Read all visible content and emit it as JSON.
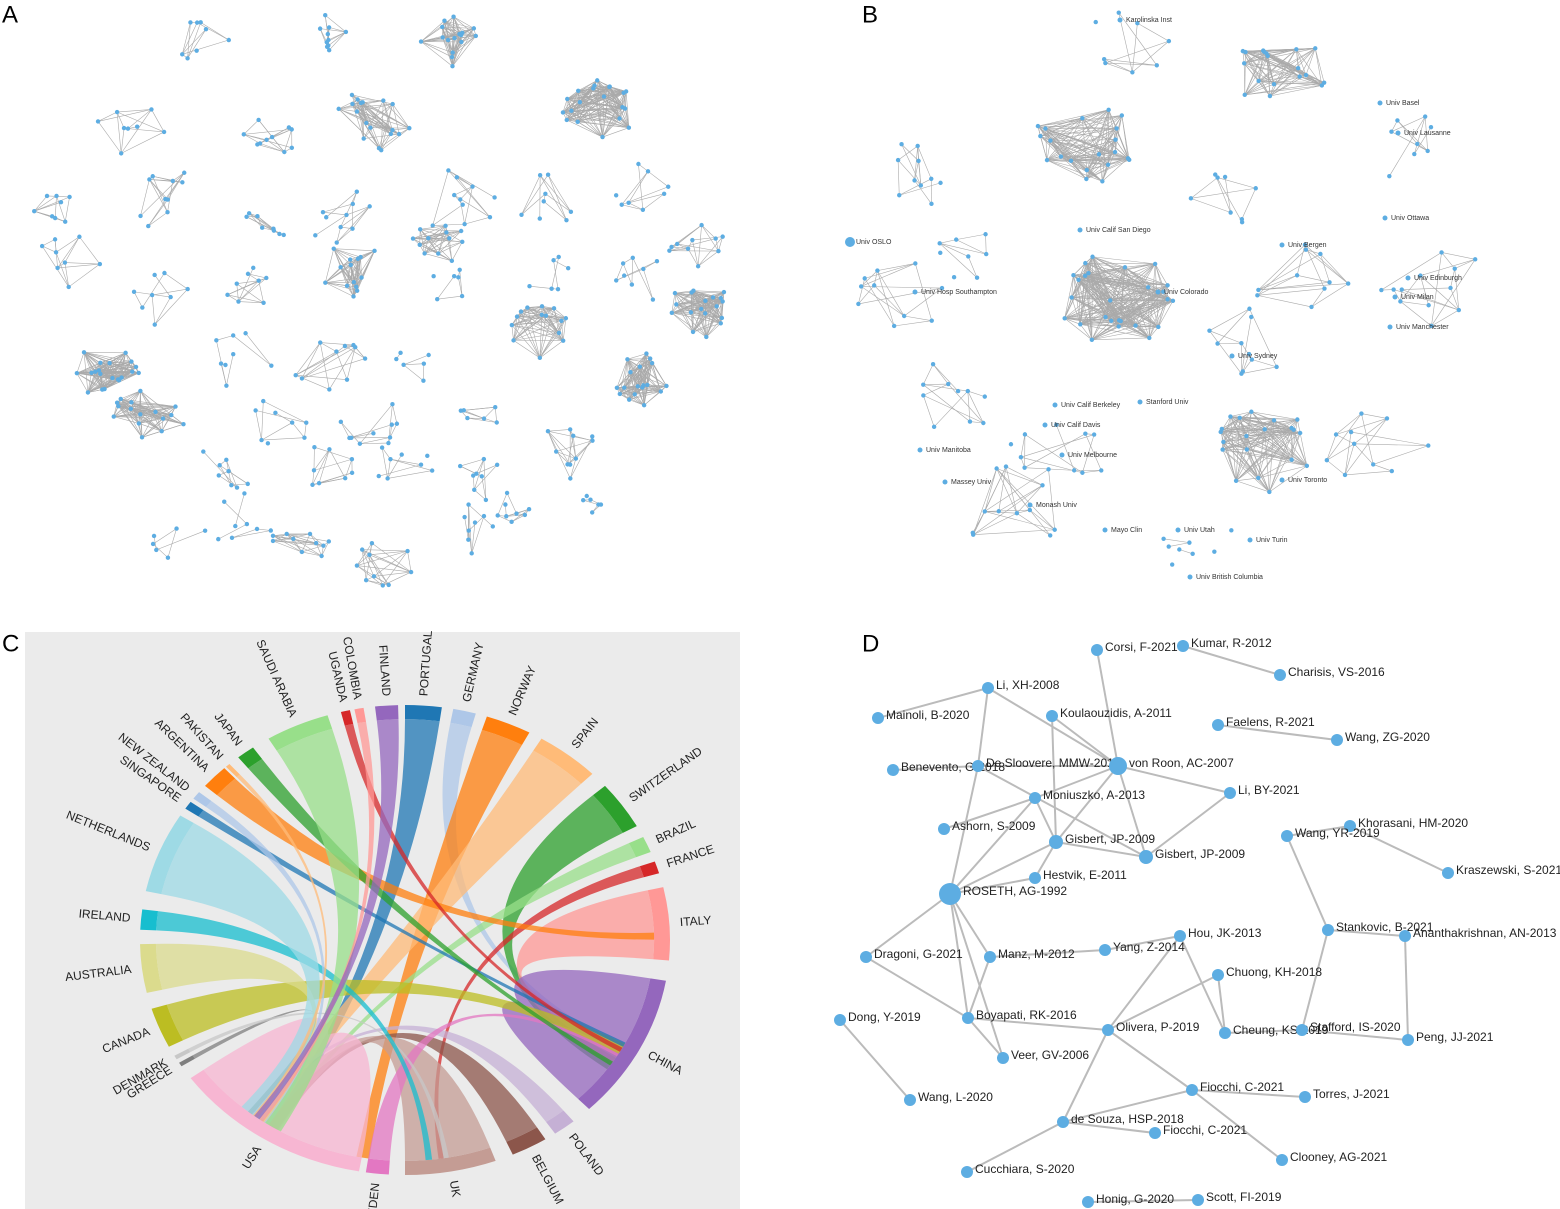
{
  "panels": [
    {
      "label": "A"
    },
    {
      "label": "B",
      "nodes": [
        "Univ OSLO",
        "Univ Colorado",
        "Stanford Univ",
        "Mayo Clin",
        "Univ Utah",
        "Univ Toronto",
        "Univ Calif San Diego",
        "Univ Hosp Southampton",
        "Univ Manitoba",
        "Massey Univ",
        "Univ Calif Berkeley",
        "Univ Calif Davis",
        "Univ British Columbia",
        "Univ Lausanne",
        "Univ Basel",
        "Univ Ottawa",
        "Univ Bergen",
        "Univ Manchester",
        "Univ Milan",
        "Univ Turin",
        "Univ Edinburgh",
        "Karolinska Inst",
        "Univ Melbourne",
        "Monash Univ",
        "Univ Sydney"
      ]
    },
    {
      "label": "C",
      "groups": [
        {
          "name": "PORTUGAL",
          "color": "#1f77b4"
        },
        {
          "name": "GERMANY",
          "color": "#aec7e8"
        },
        {
          "name": "NORWAY",
          "color": "#ff7f0e"
        },
        {
          "name": "SPAIN",
          "color": "#ffbb78"
        },
        {
          "name": "SWITZERLAND",
          "color": "#2ca02c"
        },
        {
          "name": "BRAZIL",
          "color": "#98df8a"
        },
        {
          "name": "FRANCE",
          "color": "#d62728"
        },
        {
          "name": "ITALY",
          "color": "#ff9896"
        },
        {
          "name": "CHINA",
          "color": "#9467bd"
        },
        {
          "name": "POLAND",
          "color": "#c5b0d5"
        },
        {
          "name": "BELGIUM",
          "color": "#8c564b"
        },
        {
          "name": "UK",
          "color": "#c49c94"
        },
        {
          "name": "SWEDEN",
          "color": "#e377c2"
        },
        {
          "name": "USA",
          "color": "#f7b6d2"
        },
        {
          "name": "GREECE",
          "color": "#7f7f7f"
        },
        {
          "name": "DENMARK",
          "color": "#c7c7c7"
        },
        {
          "name": "CANADA",
          "color": "#bcbd22"
        },
        {
          "name": "AUSTRALIA",
          "color": "#dbdb8d"
        },
        {
          "name": "IRELAND",
          "color": "#17becf"
        },
        {
          "name": "NETHERLANDS",
          "color": "#9edae5"
        },
        {
          "name": "SINGAPORE",
          "color": "#1f77b4"
        },
        {
          "name": "NEW ZEALAND",
          "color": "#aec7e8"
        },
        {
          "name": "ARGENTINA",
          "color": "#ff7f0e"
        },
        {
          "name": "PAKISTAN",
          "color": "#ffbb78"
        },
        {
          "name": "JAPAN",
          "color": "#2ca02c"
        },
        {
          "name": "SAUDI ARABIA",
          "color": "#98df8a"
        },
        {
          "name": "UGANDA",
          "color": "#d62728"
        },
        {
          "name": "COLOMBIA",
          "color": "#ff9896"
        },
        {
          "name": "FINLAND",
          "color": "#9467bd"
        }
      ]
    },
    {
      "label": "D",
      "nodes": [
        "Corsi, F-2021",
        "Kumar, R-2012",
        "Charisis, VS-2016",
        "Li, XH-2008",
        "Mainoli, B-2020",
        "Koulaouzidis, A-2011",
        "Faelens, R-2021",
        "Wang, ZG-2020",
        "Benevento, G-2018",
        "De Sloovere, MMW-2017",
        "von Roon, AC-2007",
        "Li, BY-2021",
        "Moniuszko, A-2013",
        "Khorasani, HM-2020",
        "Ashorn, S-2009",
        "Wang, YR-2019",
        "Gisbert, JP-2009",
        "Gisbert, JP-2009",
        "Hestvik, E-2011",
        "Kraszewski, S-2021",
        "ROSETH, AG-1992",
        "Stankovic, B-2021",
        "Ananthakrishnan, AN-2013",
        "Hou, JK-2013",
        "Dragoni, G-2021",
        "Manz, M-2012",
        "Yang, Z-2014",
        "Chuong, KH-2018",
        "Dong, Y-2019",
        "Boyapati, RK-2016",
        "Olivera, P-2019",
        "Cheung, KS-2019",
        "Stafford, IS-2020",
        "Peng, JJ-2021",
        "Veer, GV-2006",
        "Fiocchi, C-2021",
        "Torres, J-2021",
        "Wang, L-2020",
        "de Souza, HSP-2018",
        "Fiocchi, C-2021",
        "Clooney, AG-2021",
        "Cucchiara, S-2020",
        "Honig, G-2020",
        "Scott, FI-2019"
      ]
    }
  ]
}
